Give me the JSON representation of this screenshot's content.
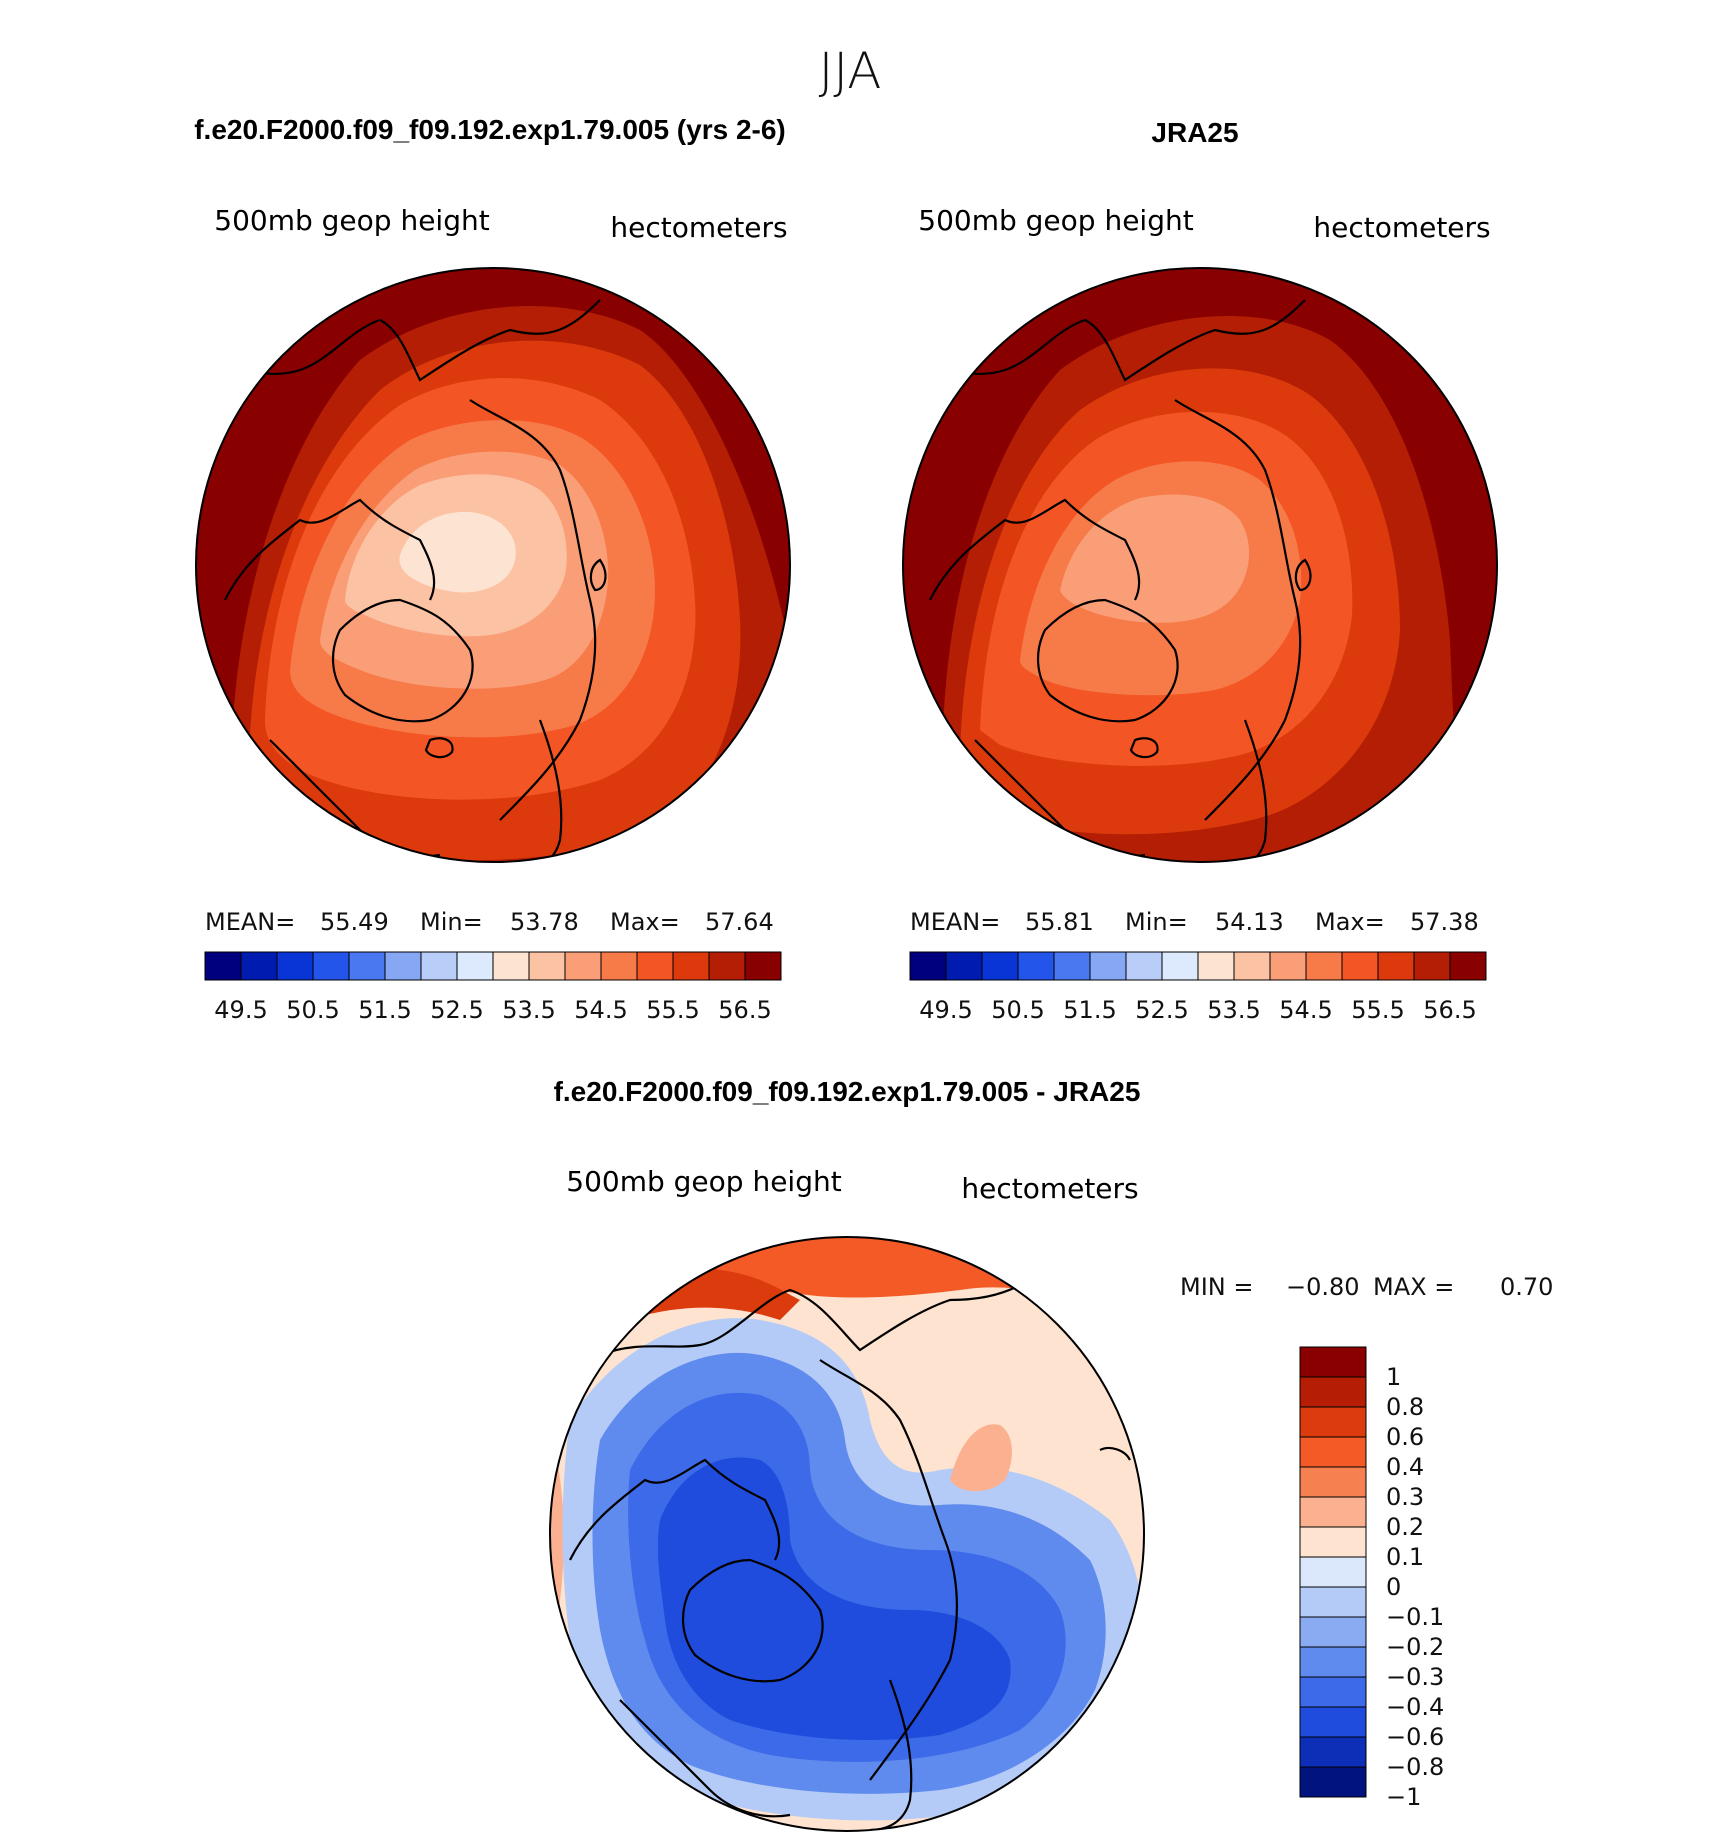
{
  "season": "JJA",
  "panels": [
    {
      "id": "model",
      "case_title": "f.e20.F2000.f09_f09.192.exp1.79.005 (yrs 2-6)",
      "variable": "500mb geop height",
      "units": "hectometers",
      "stats": {
        "mean_label": "MEAN=",
        "mean": "55.49",
        "min_label": "Min=",
        "min": "53.78",
        "max_label": "Max=",
        "max": "57.64"
      },
      "field": {
        "center": 53.9,
        "outer": 57.5,
        "levels_approx": [
          53.9,
          54.3,
          54.8,
          55.3,
          55.8,
          56.3,
          56.8,
          57.4
        ]
      }
    },
    {
      "id": "obs",
      "case_title": "JRA25",
      "variable": "500mb geop height",
      "units": "hectometers",
      "stats": {
        "mean_label": "MEAN=",
        "mean": "55.81",
        "min_label": "Min=",
        "min": "54.13",
        "max_label": "Max=",
        "max": "57.38"
      },
      "field": {
        "center": 54.2,
        "outer": 57.3,
        "levels_approx": [
          54.2,
          54.7,
          55.2,
          55.7,
          56.2,
          56.7,
          57.3
        ]
      }
    }
  ],
  "abs_colorbar": {
    "colors": [
      "#00007f",
      "#001bb0",
      "#0a35d6",
      "#2355ea",
      "#4a78f0",
      "#86a7f4",
      "#b8cdf8",
      "#dde9fc",
      "#fde4d2",
      "#fcc2a4",
      "#fa9e77",
      "#f77a49",
      "#f35524",
      "#dc3a0c",
      "#b31e04",
      "#880000"
    ],
    "tick_labels": [
      "49.5",
      "50.5",
      "51.5",
      "52.5",
      "53.5",
      "54.5",
      "55.5",
      "56.5"
    ]
  },
  "diff_panel": {
    "title": "f.e20.F2000.f09_f09.192.exp1.79.005 - JRA25",
    "variable": "500mb geop height",
    "units": "hectometers",
    "min_label": "MIN =",
    "min": "−0.80",
    "max_label": "MAX =",
    "max": "0.70"
  },
  "diff_colorbar": {
    "colors": [
      "#8a0000",
      "#b51d05",
      "#db3b0d",
      "#f35a26",
      "#f78050",
      "#fbb190",
      "#fde3d0",
      "#dbe8fb",
      "#b5cbf7",
      "#8aaaf2",
      "#5f8bee",
      "#3c6ae8",
      "#1f4cdc",
      "#0d2fb8",
      "#00137f"
    ],
    "labels": [
      "1",
      "0.8",
      "0.6",
      "0.4",
      "0.3",
      "0.2",
      "0.1",
      "0",
      "−0.1",
      "−0.2",
      "−0.3",
      "−0.4",
      "−0.6",
      "−0.8",
      "−1"
    ]
  }
}
